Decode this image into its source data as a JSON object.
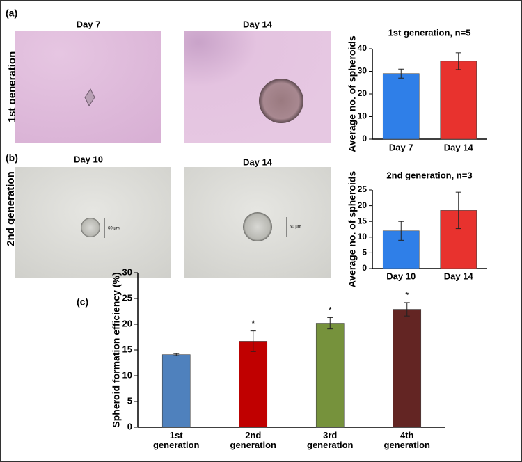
{
  "panels": {
    "a": {
      "label": "(a)",
      "row_label": "1st generation",
      "images": [
        "Day 7",
        "Day 14"
      ]
    },
    "b": {
      "label": "(b)",
      "row_label": "2nd generation",
      "images": [
        "Day 10",
        "Day 14"
      ],
      "scale_bars": [
        "60 µm",
        "60 µm"
      ]
    },
    "c": {
      "label": "(c)"
    }
  },
  "chart_data": [
    {
      "type": "bar",
      "title": "1st generation, n=5",
      "y_label": "Average no. of spheroids",
      "categories": [
        "Day 7",
        "Day 14"
      ],
      "values": [
        29,
        34.5
      ],
      "errors": [
        2,
        3.7
      ],
      "colors": [
        "#2f7fe8",
        "#e8322e"
      ],
      "ylim": [
        0,
        40
      ],
      "yticks": [
        0,
        10,
        20,
        30,
        40
      ]
    },
    {
      "type": "bar",
      "title": "2nd generation, n=3",
      "y_label": "Average no. of spheroids",
      "categories": [
        "Day 10",
        "Day 14"
      ],
      "values": [
        12,
        18.5
      ],
      "errors": [
        3,
        5.8
      ],
      "colors": [
        "#2f7fe8",
        "#e8322e"
      ],
      "ylim": [
        0,
        25
      ],
      "yticks": [
        0,
        5,
        10,
        15,
        20,
        25
      ]
    },
    {
      "type": "bar",
      "y_label": "Spheroid formation efficiency (%)",
      "categories": [
        "1st generation",
        "2nd generation",
        "3rd generation",
        "4th generation"
      ],
      "values": [
        14.1,
        16.7,
        20.2,
        22.9
      ],
      "errors": [
        0.2,
        2,
        1.1,
        1.3
      ],
      "significance": [
        null,
        "*",
        "*",
        "*"
      ],
      "colors": [
        "#4f81bd",
        "#c00000",
        "#76923c",
        "#632523"
      ],
      "ylim": [
        0,
        30
      ],
      "yticks": [
        0,
        5,
        10,
        15,
        20,
        25,
        30
      ]
    }
  ]
}
